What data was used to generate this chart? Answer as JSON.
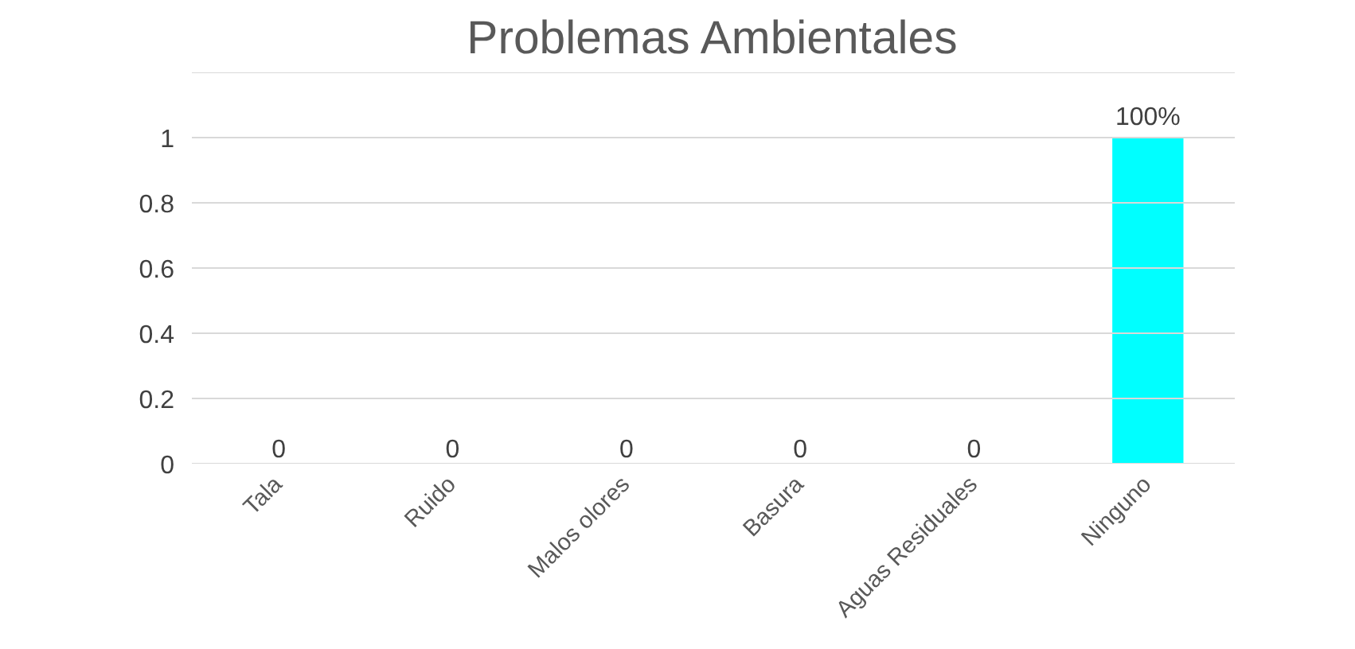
{
  "chart_data": {
    "type": "bar",
    "title": "Problemas Ambientales",
    "categories": [
      "Tala",
      "Ruido",
      "Malos olores",
      "Basura",
      "Aguas Residuales",
      "Ninguno"
    ],
    "values": [
      0,
      0,
      0,
      0,
      0,
      1
    ],
    "colors": [
      "#2f5597",
      "#2f5597",
      "#2f5597",
      "#2f5597",
      "#2f5597",
      "#00ffff"
    ],
    "value_labels": [
      "0",
      "0",
      "0",
      "0",
      "0",
      "100%"
    ],
    "ylim": [
      0,
      1.2
    ],
    "yticks": [
      0,
      0.2,
      0.4,
      0.6,
      0.8,
      1,
      {
        "value": 1.2,
        "label": null
      }
    ],
    "grid": "y"
  }
}
